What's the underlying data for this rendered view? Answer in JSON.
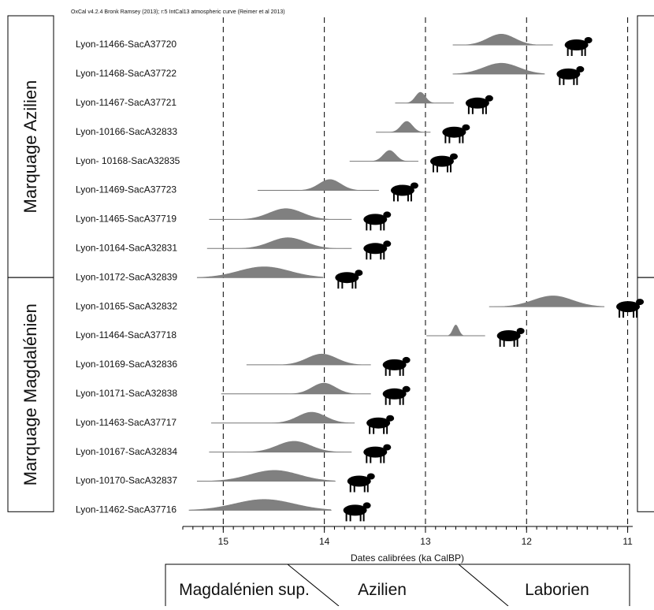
{
  "chart_data": {
    "type": "oxcal",
    "header": "OxCal v4.2.4 Bronk Ramsey (2013); r:5 IntCal13 atmospheric curve (Reimer et al 2013)",
    "x_label": "Dates calibrées (ka CalBP)",
    "xlim": [
      15.4,
      10.95
    ],
    "xticks": [
      15,
      14,
      13,
      12,
      11
    ],
    "grid": true,
    "color": "#808080",
    "groups": [
      {
        "label": "Marquage Azilien",
        "samples": [
          {
            "label": "Lyon-11466-SacA37720",
            "range": [
              12.73,
              11.74
            ],
            "hpd": [
              12.52,
              11.98
            ]
          },
          {
            "label": "Lyon-11468-SacA37722",
            "range": [
              12.73,
              11.82
            ],
            "hpd": [
              12.6,
              11.9
            ]
          },
          {
            "label": "Lyon-11467-SacA37721",
            "range": [
              13.3,
              12.72
            ],
            "hpd": [
              13.15,
              12.95
            ]
          },
          {
            "label": "Lyon-10166-SacA32833",
            "range": [
              13.49,
              12.95
            ],
            "hpd": [
              13.3,
              13.07
            ]
          },
          {
            "label": "Lyon- 10168-SacA32835",
            "range": [
              13.75,
              13.07
            ],
            "hpd": [
              13.48,
              13.23
            ]
          },
          {
            "label": "Lyon-11469-SacA37723",
            "range": [
              14.66,
              13.46
            ],
            "hpd": [
              14.16,
              13.73
            ]
          },
          {
            "label": "Lyon-11465-SacA37719",
            "range": [
              15.14,
              13.73
            ],
            "hpd": [
              14.71,
              14.05
            ]
          },
          {
            "label": "Lyon-10164-SacA32831",
            "range": [
              15.16,
              13.73
            ],
            "hpd": [
              14.71,
              14.01
            ]
          },
          {
            "label": "Lyon-10172-SacA32839",
            "range": [
              15.26,
              14.01
            ],
            "hpd": [
              15.1,
              14.09
            ]
          }
        ]
      },
      {
        "label": "Marquage Magdalénien",
        "samples": [
          {
            "label": "Lyon-10165-SacA32832",
            "range": [
              12.37,
              11.23
            ],
            "hpd": [
              12.13,
              11.35
            ]
          },
          {
            "label": "Lyon-11464-SacA37718",
            "range": [
              12.99,
              12.41
            ],
            "hpd": [
              12.76,
              12.64
            ]
          },
          {
            "label": "Lyon-10169-SacA32836",
            "range": [
              14.77,
              13.54
            ],
            "hpd": [
              14.32,
              13.73
            ]
          },
          {
            "label": "Lyon-10171-SacA32838",
            "range": [
              15.02,
              13.54
            ],
            "hpd": [
              14.24,
              13.77
            ]
          },
          {
            "label": "Lyon-11463-SacA37717",
            "range": [
              15.12,
              13.7
            ],
            "hpd": [
              14.4,
              13.85
            ]
          },
          {
            "label": "Lyon-10167-SacA32834",
            "range": [
              15.14,
              13.73
            ],
            "hpd": [
              14.63,
              13.97
            ]
          },
          {
            "label": "Lyon-10170-SacA32837",
            "range": [
              15.26,
              13.89
            ],
            "hpd": [
              14.98,
              14.01
            ]
          },
          {
            "label": "Lyon-11462-SacA37716",
            "range": [
              15.34,
              13.93
            ],
            "hpd": [
              15.18,
              14.01
            ]
          }
        ]
      }
    ],
    "periods": [
      "Magdalénien sup.",
      "Azilien",
      "Laborien"
    ]
  }
}
